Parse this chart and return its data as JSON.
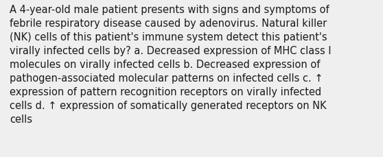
{
  "lines": [
    "A 4-year-old male patient presents with signs and symptoms of",
    "febrile respiratory disease caused by adenovirus. Natural killer",
    "(NK) cells of this patient's immune system detect this patient's",
    "virally infected cells by? a. Decreased expression of MHC class I",
    "molecules on virally infected cells b. Decreased expression of",
    "pathogen-associated molecular patterns on infected cells c. ↑",
    "expression of pattern recognition receptors on virally infected",
    "cells d. ↑ expression of somatically generated receptors on NK",
    "cells"
  ],
  "background_color": "#efefef",
  "text_color": "#1a1a1a",
  "font_size": 10.5,
  "fig_width": 5.58,
  "fig_height": 2.3,
  "dpi": 100
}
